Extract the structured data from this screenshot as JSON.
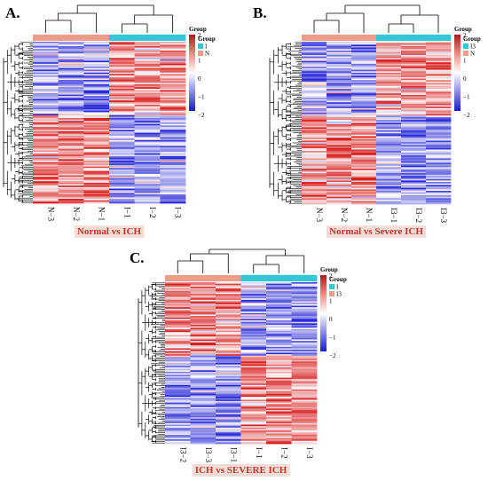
{
  "colors": {
    "low": "#2929d8",
    "mid": "#ffffff",
    "high": "#d81e1e",
    "group_normal": "#f09c8a",
    "group_ich": "#33c6d6",
    "caption": "#c0392b",
    "caption_bg": "#f4dcd9"
  },
  "panels": [
    {
      "letter": "A.",
      "caption": "Normal vs ICH",
      "columns": [
        "N−3",
        "N−2",
        "N−1",
        "I−1",
        "I−2",
        "I−3"
      ],
      "column_groups": [
        "normal",
        "normal",
        "normal",
        "ich",
        "ich",
        "ich"
      ],
      "legend_title": "Group",
      "legend_group_title": "Group",
      "legend_entries": [
        "I",
        "N"
      ],
      "scale_ticks": [
        "2",
        "1",
        "0",
        "−1",
        "−2"
      ],
      "pattern": "first-low"
    },
    {
      "letter": "B.",
      "caption": "Normal vs Severe ICH",
      "columns": [
        "N−3",
        "N−2",
        "N−1",
        "I3−1",
        "I3−2",
        "I3−3"
      ],
      "column_groups": [
        "normal",
        "normal",
        "normal",
        "ich",
        "ich",
        "ich"
      ],
      "legend_title": "Group",
      "legend_group_title": "Group",
      "legend_entries": [
        "I3",
        "N"
      ],
      "scale_ticks": [
        "2",
        "1",
        "0",
        "−1",
        "−2"
      ],
      "pattern": "first-low"
    },
    {
      "letter": "C.",
      "caption": "ICH vs SEVERE ICH",
      "columns": [
        "I3−2",
        "I3−3",
        "I3−1",
        "I−1",
        "I−2",
        "I−3"
      ],
      "column_groups": [
        "normal",
        "normal",
        "normal",
        "ich",
        "ich",
        "ich"
      ],
      "legend_title": "Group",
      "legend_group_title": "Group",
      "legend_entries": [
        "I",
        "I3"
      ],
      "scale_ticks": [
        "2",
        "1",
        "0",
        "−1",
        "−2"
      ],
      "pattern": "first-high"
    }
  ]
}
